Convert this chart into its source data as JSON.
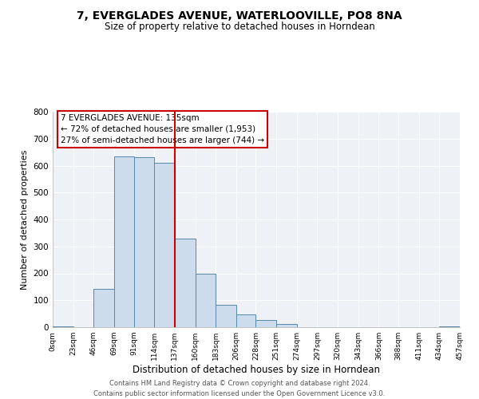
{
  "title": "7, EVERGLADES AVENUE, WATERLOOVILLE, PO8 8NA",
  "subtitle": "Size of property relative to detached houses in Horndean",
  "xlabel": "Distribution of detached houses by size in Horndean",
  "ylabel": "Number of detached properties",
  "bar_color": "#ccdcec",
  "bar_edge_color": "#5588aa",
  "bar_left_edges": [
    0,
    23,
    46,
    69,
    91,
    114,
    137,
    160,
    183,
    206,
    228,
    251,
    274,
    297,
    320,
    343,
    366,
    388,
    411,
    434
  ],
  "bar_widths": [
    23,
    23,
    23,
    22,
    23,
    23,
    23,
    23,
    23,
    22,
    23,
    23,
    23,
    23,
    23,
    23,
    22,
    23,
    23,
    23
  ],
  "bar_heights": [
    2,
    0,
    143,
    635,
    632,
    610,
    330,
    200,
    83,
    46,
    27,
    13,
    0,
    0,
    0,
    0,
    0,
    0,
    0,
    4
  ],
  "tick_labels": [
    "0sqm",
    "23sqm",
    "46sqm",
    "69sqm",
    "91sqm",
    "114sqm",
    "137sqm",
    "160sqm",
    "183sqm",
    "206sqm",
    "228sqm",
    "251sqm",
    "274sqm",
    "297sqm",
    "320sqm",
    "343sqm",
    "366sqm",
    "388sqm",
    "411sqm",
    "434sqm",
    "457sqm"
  ],
  "tick_positions": [
    0,
    23,
    46,
    69,
    91,
    114,
    137,
    160,
    183,
    206,
    228,
    251,
    274,
    297,
    320,
    343,
    366,
    388,
    411,
    434,
    457
  ],
  "vline_x": 137,
  "vline_color": "#cc0000",
  "ylim": [
    0,
    800
  ],
  "yticks": [
    0,
    100,
    200,
    300,
    400,
    500,
    600,
    700,
    800
  ],
  "xlim": [
    0,
    457
  ],
  "annotation_line1": "7 EVERGLADES AVENUE: 135sqm",
  "annotation_line2": "← 72% of detached houses are smaller (1,953)",
  "annotation_line3": "27% of semi-detached houses are larger (744) →",
  "footer_line1": "Contains HM Land Registry data © Crown copyright and database right 2024.",
  "footer_line2": "Contains public sector information licensed under the Open Government Licence v3.0.",
  "background_color": "#eef2f7",
  "grid_color": "#ffffff",
  "fig_bg_color": "#ffffff"
}
